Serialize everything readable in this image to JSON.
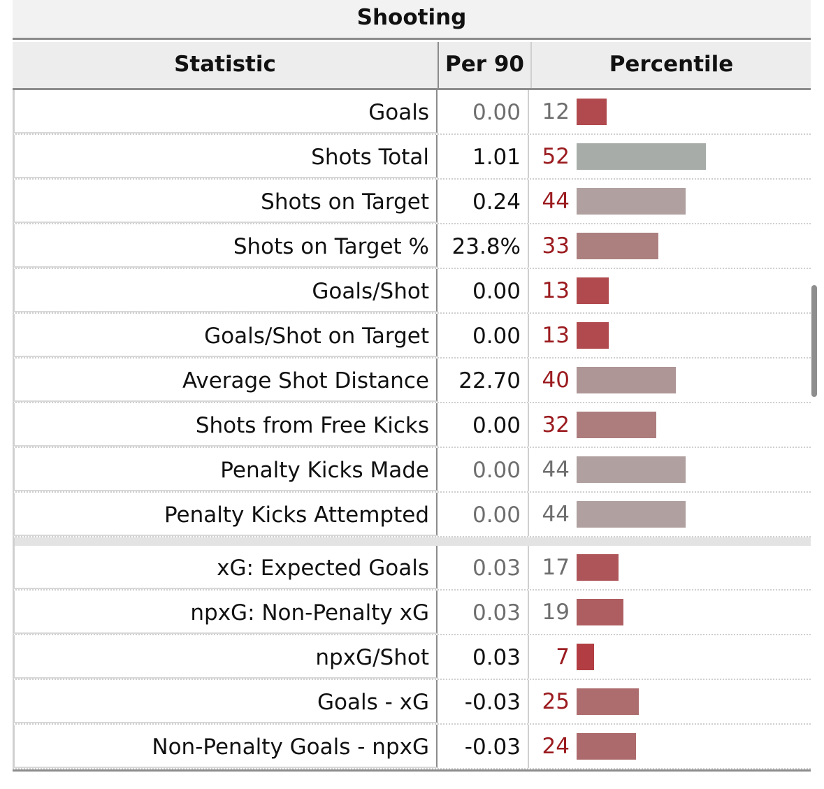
{
  "table": {
    "caption": "Shooting",
    "headers": {
      "statistic": "Statistic",
      "per90": "Per 90",
      "percentile": "Percentile"
    },
    "rows": [
      {
        "stat": "Goals",
        "per90": "0.00",
        "percentile": "12",
        "dim": true,
        "bar_color": "#b04a4e"
      },
      {
        "stat": "Shots Total",
        "per90": "1.01",
        "percentile": "52",
        "dim": false,
        "bar_color": "#a8aca8"
      },
      {
        "stat": "Shots on Target",
        "per90": "0.24",
        "percentile": "44",
        "dim": false,
        "bar_color": "#b0a0a0"
      },
      {
        "stat": "Shots on Target %",
        "per90": "23.8%",
        "percentile": "33",
        "dim": false,
        "bar_color": "#ad8080"
      },
      {
        "stat": "Goals/Shot",
        "per90": "0.00",
        "percentile": "13",
        "dim": false,
        "bar_color": "#b04a4e"
      },
      {
        "stat": "Goals/Shot on Target",
        "per90": "0.00",
        "percentile": "13",
        "dim": false,
        "bar_color": "#b04a4e"
      },
      {
        "stat": "Average Shot Distance",
        "per90": "22.70",
        "percentile": "40",
        "dim": false,
        "bar_color": "#ae9596"
      },
      {
        "stat": "Shots from Free Kicks",
        "per90": "0.00",
        "percentile": "32",
        "dim": false,
        "bar_color": "#ad7d7e"
      },
      {
        "stat": "Penalty Kicks Made",
        "per90": "0.00",
        "percentile": "44",
        "dim": true,
        "bar_color": "#b0a0a0"
      },
      {
        "stat": "Penalty Kicks Attempted",
        "per90": "0.00",
        "percentile": "44",
        "dim": true,
        "bar_color": "#b0a0a0"
      }
    ],
    "rows2": [
      {
        "stat": "xG: Expected Goals",
        "per90": "0.03",
        "percentile": "17",
        "dim": true,
        "bar_color": "#ae5559"
      },
      {
        "stat": "npxG: Non-Penalty xG",
        "per90": "0.03",
        "percentile": "19",
        "dim": true,
        "bar_color": "#ae5d60"
      },
      {
        "stat": "npxG/Shot",
        "per90": "0.03",
        "percentile": "7",
        "dim": false,
        "bar_color": "#b23e43"
      },
      {
        "stat": "Goals - xG",
        "per90": "-0.03",
        "percentile": "25",
        "dim": false,
        "bar_color": "#ad6d6f"
      },
      {
        "stat": "Non-Penalty Goals - npxG",
        "per90": "-0.03",
        "percentile": "24",
        "dim": false,
        "bar_color": "#ad6a6c"
      }
    ]
  },
  "colors": {
    "dim_text": "#6e6e6e",
    "normal_text": "#111111",
    "percentile_red": "#9b1b1f",
    "percentile_dim": "#6e6e6e"
  }
}
